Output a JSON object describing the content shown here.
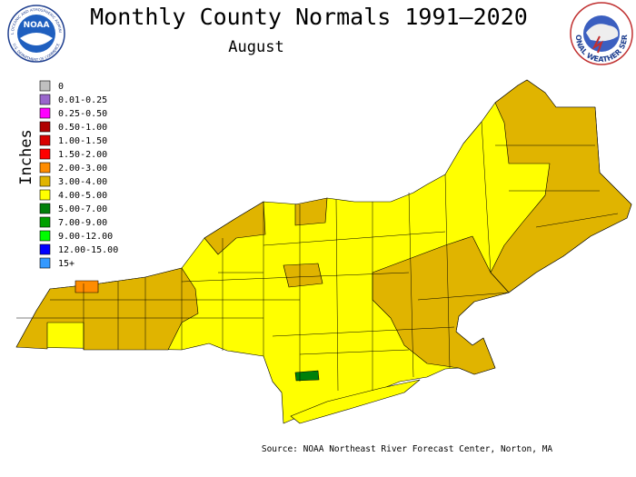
{
  "header": {
    "title": "Monthly County Normals 1991–2020",
    "subtitle": "August"
  },
  "logos": {
    "noaa": "NOAA",
    "noaa_ring_top": "NATIONAL OCEANIC AND ATMOSPHERIC ADMINISTRATION",
    "noaa_ring_bottom": "U.S. DEPARTMENT OF COMMERCE",
    "nws_ring": "NATIONAL WEATHER SERVICE"
  },
  "legend": {
    "title": "Inches",
    "items": [
      {
        "label": "0",
        "color": "#c0c0c0"
      },
      {
        "label": "0.01-0.25",
        "color": "#9966cc"
      },
      {
        "label": "0.25-0.50",
        "color": "#ff00ff"
      },
      {
        "label": "0.50-1.00",
        "color": "#b00000"
      },
      {
        "label": "1.00-1.50",
        "color": "#d80000"
      },
      {
        "label": "1.50-2.00",
        "color": "#ff0000"
      },
      {
        "label": "2.00-3.00",
        "color": "#ff8c00"
      },
      {
        "label": "3.00-4.00",
        "color": "#e0b400"
      },
      {
        "label": "4.00-5.00",
        "color": "#ffff00"
      },
      {
        "label": "5.00-7.00",
        "color": "#00800a"
      },
      {
        "label": "7.00-9.00",
        "color": "#00a000"
      },
      {
        "label": "9.00-12.00",
        "color": "#00ff00"
      },
      {
        "label": "12.00-15.00",
        "color": "#0000ff"
      },
      {
        "label": "15+",
        "color": "#3399ff"
      }
    ]
  },
  "source": "Source: NOAA Northeast River Forecast Center, Norton, MA"
}
